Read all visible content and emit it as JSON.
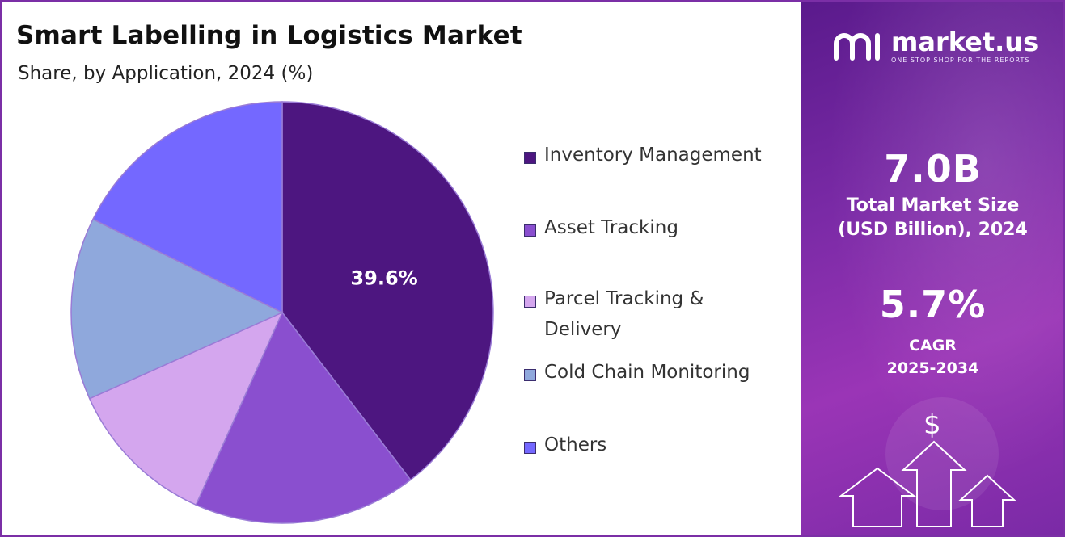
{
  "header": {
    "title": "Smart Labelling in Logistics Market",
    "subtitle": "Share, by Application, 2024 (%)"
  },
  "chart_data": {
    "type": "pie",
    "title": "Smart Labelling in Logistics Market",
    "subtitle": "Share, by Application, 2024 (%)",
    "slices": [
      {
        "label": "Inventory Management",
        "legend_lines": [
          "Inventory Management"
        ],
        "value": 39.6,
        "display": "39.6%",
        "color": "#4d1680"
      },
      {
        "label": "Asset Tracking",
        "legend_lines": [
          "Asset Tracking"
        ],
        "value": 17.1,
        "color": "#8a4fcf"
      },
      {
        "label": "Parcel Tracking & Delivery",
        "legend_lines": [
          "Parcel Tracking &",
          "Delivery"
        ],
        "value": 11.6,
        "color": "#d4a6ee"
      },
      {
        "label": "Cold Chain Monitoring",
        "legend_lines": [
          "Cold Chain Monitoring"
        ],
        "value": 14.0,
        "color": "#8fa8dc"
      },
      {
        "label": "Others",
        "legend_lines": [
          "Others"
        ],
        "value": 17.7,
        "color": "#7468ff"
      }
    ],
    "legend_placement": "right"
  },
  "sidebar": {
    "brand": {
      "name": "market.us",
      "tagline": "ONE STOP SHOP FOR THE REPORTS"
    },
    "market_size": {
      "value": "7.0B",
      "label_line1": "Total Market Size",
      "label_line2": "(USD Billion), 2024"
    },
    "cagr": {
      "value": "5.7%",
      "label_line1": "CAGR",
      "label_line2": "2025-2034"
    },
    "dollar_icon": "$"
  }
}
